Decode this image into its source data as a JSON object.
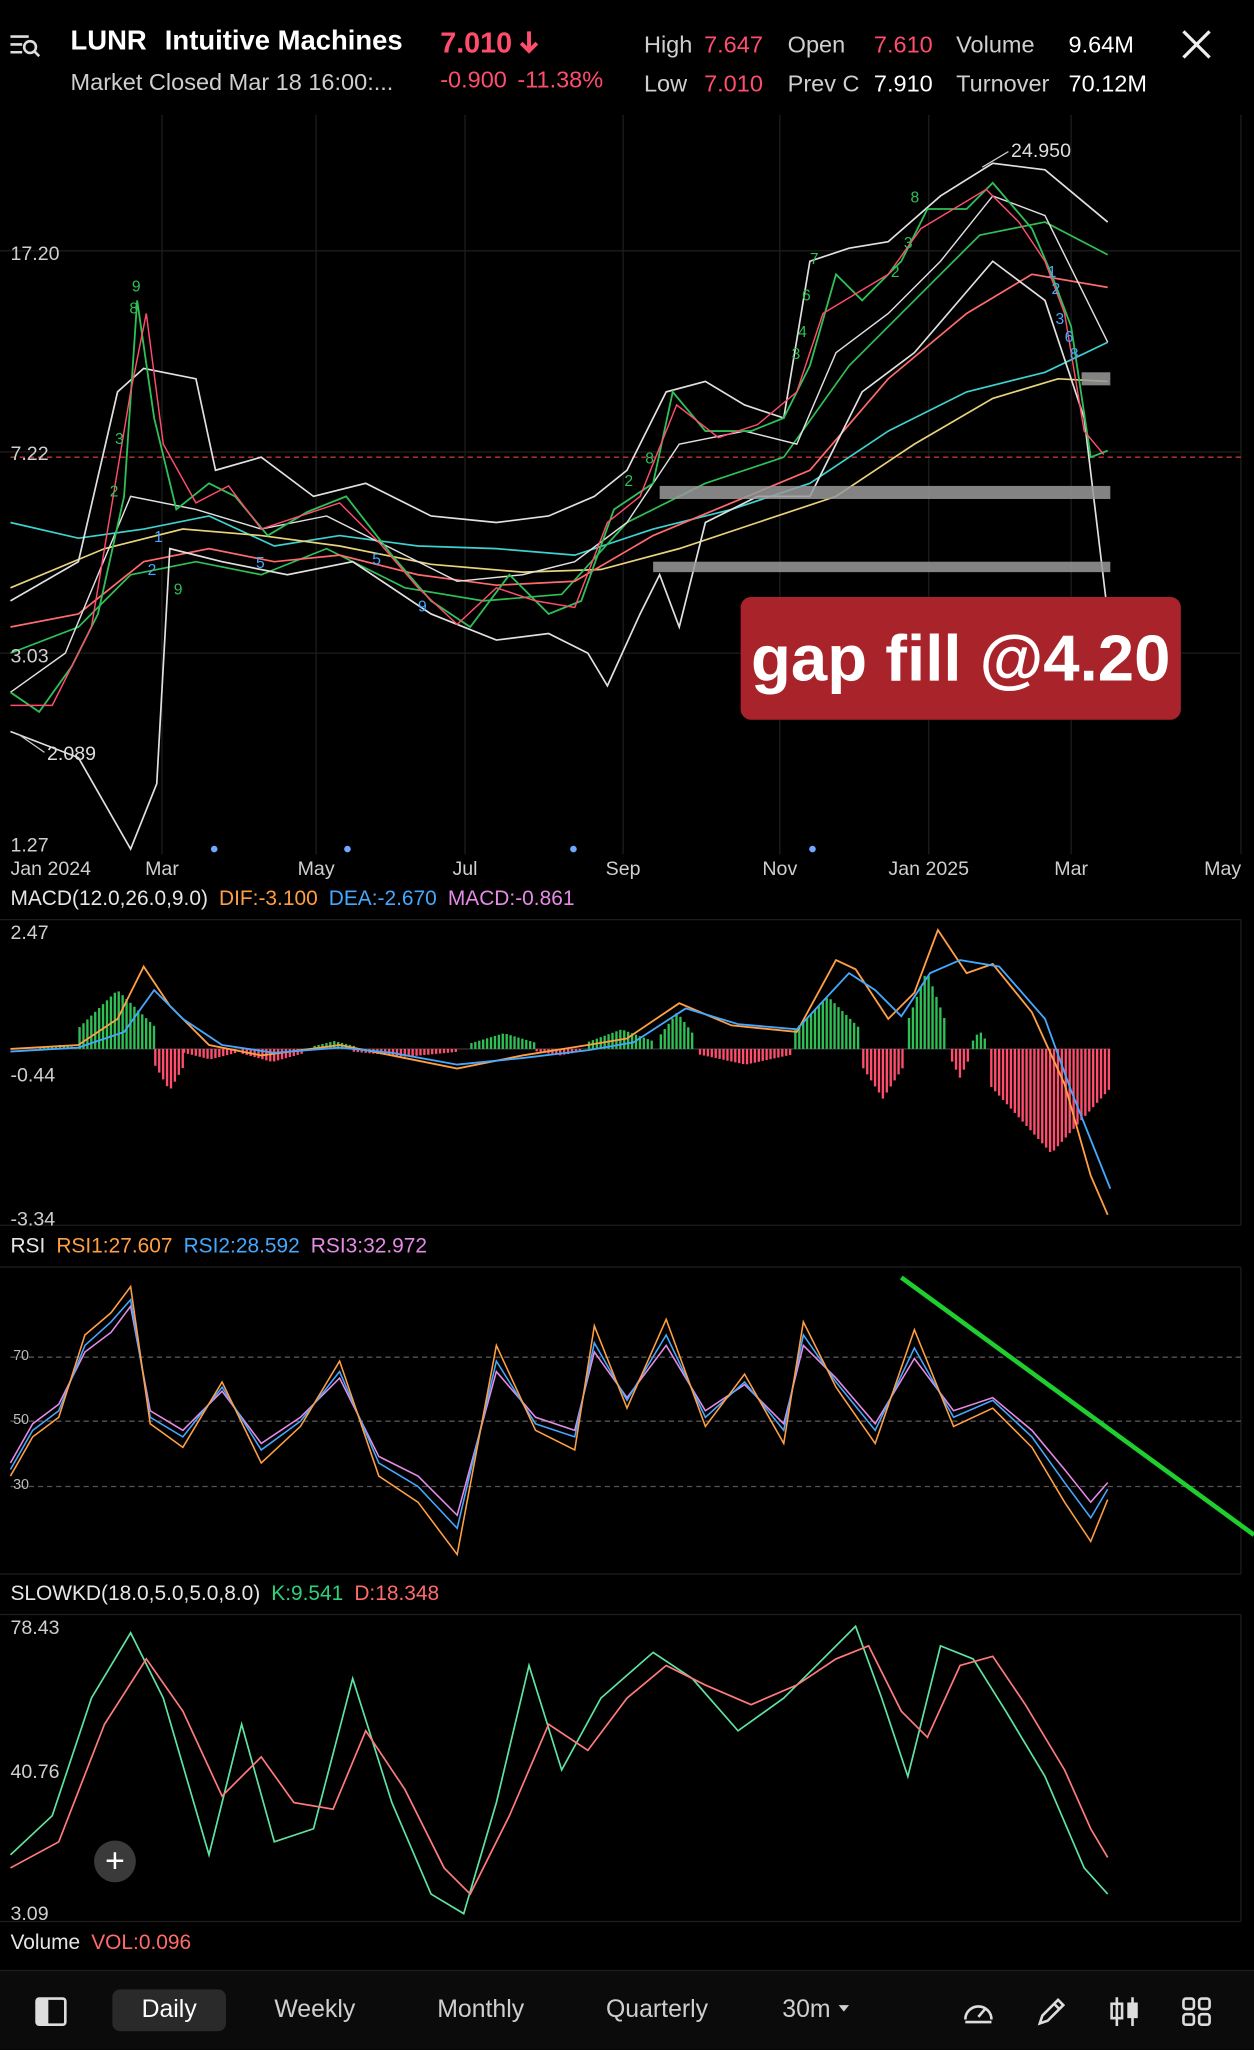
{
  "header": {
    "symbol": "LUNR",
    "name": "Intuitive Machines",
    "status": "Market Closed Mar 18 16:00:...",
    "price": "7.010",
    "change": "-0.900",
    "change_pct": "-11.38%",
    "stats": [
      {
        "label": "High",
        "value": "7.647"
      },
      {
        "label": "Open",
        "value": "7.610"
      },
      {
        "label": "Volume",
        "value": "9.64M"
      },
      {
        "label": "Low",
        "value": "7.010"
      },
      {
        "label": "Prev C",
        "value": "7.910"
      },
      {
        "label": "Turnover",
        "value": "70.12M"
      }
    ]
  },
  "main_chart": {
    "y_labels": [
      "17.20",
      "7.22",
      "3.03",
      "1.27"
    ],
    "x_labels": [
      "Jan 2024",
      "Mar",
      "May",
      "Jul",
      "Sep",
      "Nov",
      "Jan 2025",
      "Mar",
      "May"
    ],
    "high_marker": "24.950",
    "low_marker": "2.089",
    "annotation": "gap fill @4.20"
  },
  "macd": {
    "label": "MACD(12.0,26.0,9.0)",
    "dif": "DIF:-3.100",
    "dea": "DEA:-2.670",
    "macd": "MACD:-0.861",
    "y_labels": [
      "2.47",
      "-0.44",
      "-3.34"
    ]
  },
  "rsi": {
    "label": "RSI",
    "rsi1": "RSI1:27.607",
    "rsi2": "RSI2:28.592",
    "rsi3": "RSI3:32.972",
    "levels": [
      "70",
      "50",
      "30"
    ]
  },
  "slowkd": {
    "label": "SLOWKD(18.0,5.0,5.0,8.0)",
    "k": "K:9.541",
    "d": "D:18.348",
    "y_labels": [
      "78.43",
      "40.76",
      "3.09"
    ]
  },
  "volume": {
    "label": "Volume",
    "vol": "VOL:0.096"
  },
  "bottom_tabs": [
    "Daily",
    "Weekly",
    "Monthly",
    "Quarterly",
    "30m"
  ],
  "tool_icons": [
    "speedometer-icon",
    "pencil-icon",
    "candlestick-icon",
    "grid-icon"
  ],
  "colors": {
    "up": "#2fbf55",
    "down": "#ff4d6d",
    "orange": "#ff9f43",
    "blue": "#45a8ff",
    "pink": "#e68be6",
    "annotation_bg": "#a8242a",
    "trendline": "#1fcf2f"
  }
}
